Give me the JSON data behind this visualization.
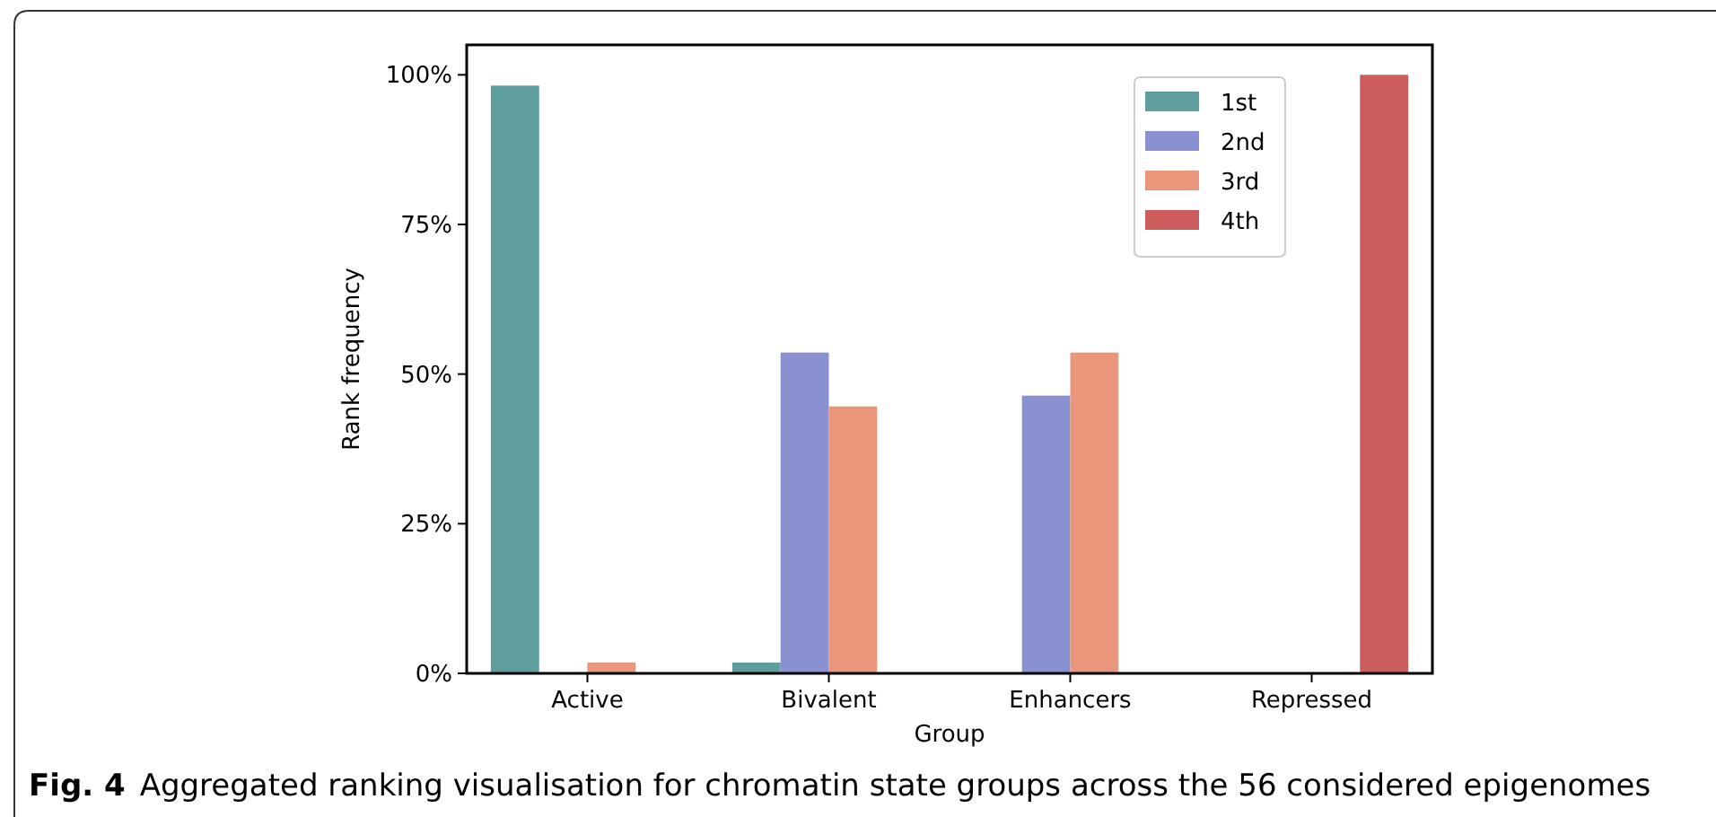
{
  "chart_data": {
    "type": "bar",
    "xlabel": "Group",
    "ylabel": "Rank frequency",
    "categories": [
      "Active",
      "Bivalent",
      "Enhancers",
      "Repressed"
    ],
    "series": [
      {
        "name": "1st",
        "color": "#5f9e9f",
        "values": [
          98.2,
          1.8,
          0,
          0
        ]
      },
      {
        "name": "2nd",
        "color": "#8a91d0",
        "values": [
          0,
          53.6,
          46.4,
          0
        ]
      },
      {
        "name": "3rd",
        "color": "#e9967a",
        "values": [
          1.8,
          44.6,
          53.6,
          0
        ]
      },
      {
        "name": "4th",
        "color": "#cd5c5c",
        "values": [
          0,
          0,
          0,
          100
        ]
      }
    ],
    "ylim": [
      0,
      105
    ],
    "yticks": [
      {
        "value": 0,
        "label": "0%"
      },
      {
        "value": 25,
        "label": "25%"
      },
      {
        "value": 50,
        "label": "50%"
      },
      {
        "value": 75,
        "label": "75%"
      },
      {
        "value": 100,
        "label": "100%"
      }
    ],
    "grid": false,
    "legend": "top right",
    "annotations": [
      "Fig. 4",
      "Aggregated ranking visualisation for chromatin state groups across the 56 considered epigenomes"
    ]
  }
}
